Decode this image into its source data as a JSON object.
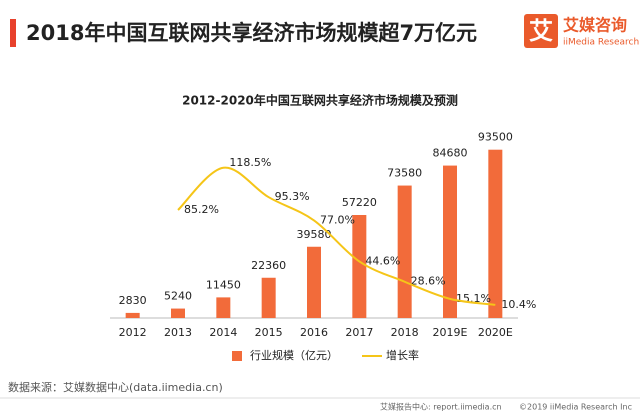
{
  "header": {
    "title": "2018年中国互联网共享经济市场规模超7万亿元",
    "logo_mark": "艾",
    "logo_name": "艾媒咨询",
    "logo_sub": "iiMedia Research"
  },
  "chart_data": {
    "type": "bar",
    "title": "2012-2020年中国互联网共享经济市场规模及预测",
    "categories": [
      "2012",
      "2013",
      "2014",
      "2015",
      "2016",
      "2017",
      "2018",
      "2019E",
      "2020E"
    ],
    "ylim": [
      0,
      100000
    ],
    "y2lim": [
      0,
      142
    ],
    "series": [
      {
        "name": "行业规模（亿元）",
        "type": "bar",
        "color": "#f26b3a",
        "values": [
          2830,
          5240,
          11450,
          22360,
          39580,
          57220,
          73580,
          84680,
          93500
        ]
      },
      {
        "name": "增长率",
        "type": "line",
        "axis": "y2",
        "color": "#f5c518",
        "values": [
          null,
          85.2,
          118.5,
          95.3,
          77.0,
          44.6,
          28.6,
          15.1,
          10.4
        ],
        "value_labels": [
          null,
          "85.2%",
          "118.5%",
          "95.3%",
          "77.0%",
          "44.6%",
          "28.6%",
          "15.1%",
          "10.4%"
        ]
      }
    ]
  },
  "source": "数据来源：艾媒数据中心(data.iimedia.cn)",
  "footer": {
    "left": "艾媒报告中心: report.iimedia.cn",
    "right": "©2019  iiMedia Research  Inc"
  }
}
